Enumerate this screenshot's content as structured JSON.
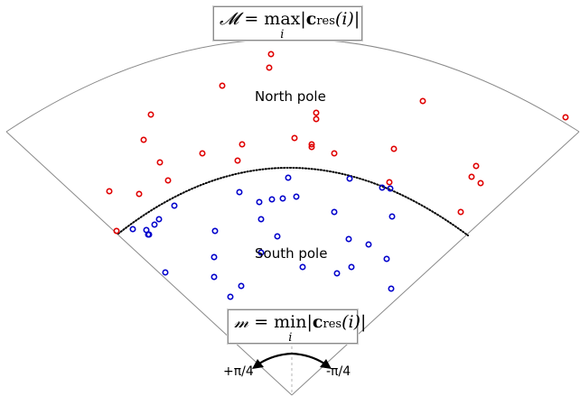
{
  "annotations": {
    "top_formula": {
      "lhs": "𝓜",
      "eq": "=",
      "op": "max",
      "sub": "i",
      "bar1": "|",
      "vec": "c",
      "vsub": "res",
      "arg": "(i)",
      "bar2": "|"
    },
    "bottom_formula": {
      "lhs": "𝓂",
      "eq": "=",
      "op": "min",
      "sub": "i",
      "bar1": "|",
      "vec": "c",
      "vsub": "res",
      "arg": "(i)",
      "bar2": "|"
    },
    "north_label": "North pole",
    "south_label": "South pole",
    "left_angle": "+π/4",
    "right_angle": "-π/4"
  },
  "colors": {
    "north": "#e00000",
    "south": "#0000cc",
    "outline": "#8a8a8a",
    "boundary": "#000000"
  },
  "chart_data": {
    "type": "scatter",
    "series": [
      {
        "class": "north",
        "points": [
          [
            300,
            60
          ],
          [
            298,
            75
          ],
          [
            246,
            95
          ],
          [
            468,
            112
          ],
          [
            167,
            127
          ],
          [
            350,
            125
          ],
          [
            350,
            132
          ],
          [
            626,
            130
          ],
          [
            159,
            155
          ],
          [
            326,
            153
          ],
          [
            345,
            160
          ],
          [
            345,
            163
          ],
          [
            268,
            160
          ],
          [
            224,
            170
          ],
          [
            436,
            165
          ],
          [
            370,
            170
          ],
          [
            177,
            180
          ],
          [
            263,
            178
          ],
          [
            527,
            184
          ],
          [
            186,
            200
          ],
          [
            522,
            196
          ],
          [
            532,
            203
          ],
          [
            121,
            212
          ],
          [
            154,
            215
          ],
          [
            431,
            202
          ],
          [
            510,
            235
          ],
          [
            129,
            256
          ]
        ]
      },
      {
        "class": "south",
        "points": [
          [
            319,
            197
          ],
          [
            387,
            198
          ],
          [
            423,
            208
          ],
          [
            265,
            213
          ],
          [
            328,
            218
          ],
          [
            313,
            220
          ],
          [
            301,
            221
          ],
          [
            287,
            224
          ],
          [
            432,
            209
          ],
          [
            193,
            228
          ],
          [
            370,
            235
          ],
          [
            434,
            240
          ],
          [
            176,
            243
          ],
          [
            289,
            243
          ],
          [
            171,
            249
          ],
          [
            147,
            254
          ],
          [
            162,
            255
          ],
          [
            165,
            260
          ],
          [
            164,
            260
          ],
          [
            238,
            256
          ],
          [
            307,
            262
          ],
          [
            386,
            265
          ],
          [
            408,
            271
          ],
          [
            428,
            287
          ],
          [
            237,
            285
          ],
          [
            289,
            280
          ],
          [
            335,
            296
          ],
          [
            389,
            296
          ],
          [
            373,
            303
          ],
          [
            183,
            302
          ],
          [
            237,
            307
          ],
          [
            267,
            317
          ],
          [
            433,
            320
          ],
          [
            255,
            329
          ]
        ]
      }
    ]
  }
}
